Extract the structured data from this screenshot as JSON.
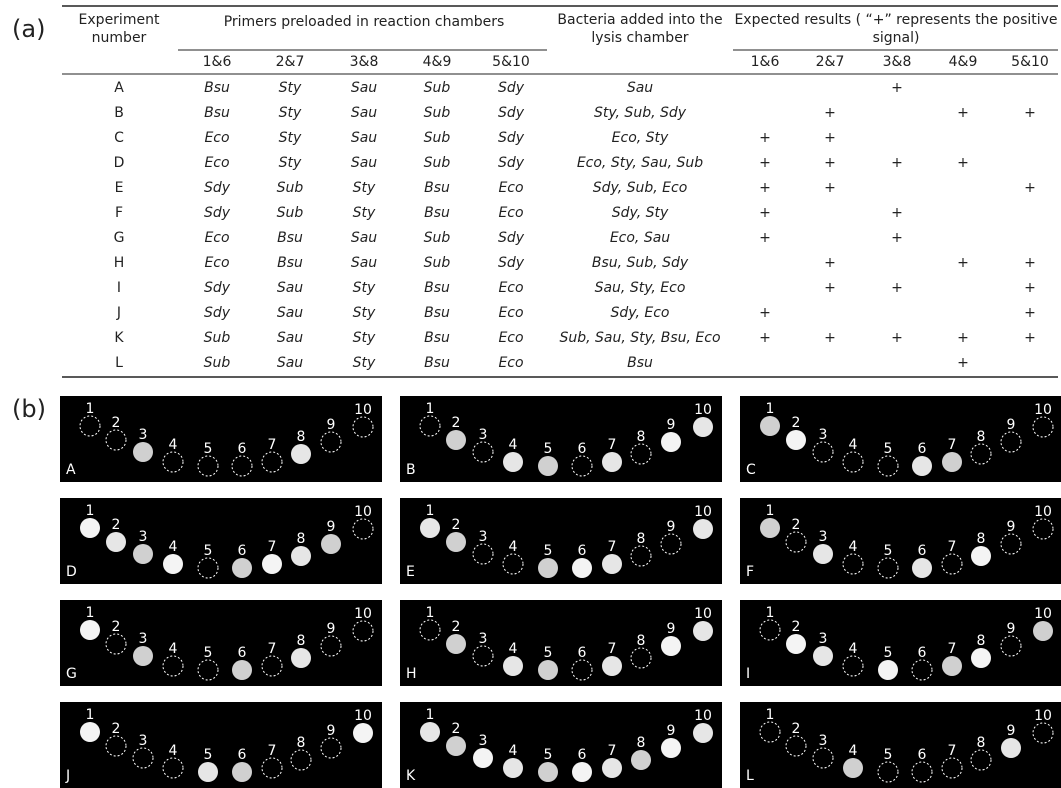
{
  "panel_a": {
    "label": "(a)",
    "header": {
      "experiment": [
        "Experiment",
        "number"
      ],
      "primers": "Primers preloaded in reaction chambers",
      "bacteria": [
        "Bacteria added into the",
        "lysis chamber"
      ],
      "expected": [
        "Expected results ( “+” represents the  positive",
        "signal)"
      ],
      "chamber_pairs": [
        "1&6",
        "2&7",
        "3&8",
        "4&9",
        "5&10"
      ]
    },
    "rows": [
      {
        "experiment": "A",
        "primers": [
          "Bsu",
          "Sty",
          "Sau",
          "Sub",
          "Sdy"
        ],
        "bacteria": "Sau",
        "results": [
          null,
          null,
          "+",
          null,
          null
        ]
      },
      {
        "experiment": "B",
        "primers": [
          "Bsu",
          "Sty",
          "Sau",
          "Sub",
          "Sdy"
        ],
        "bacteria": "Sty, Sub, Sdy",
        "results": [
          null,
          "+",
          null,
          "+",
          "+"
        ]
      },
      {
        "experiment": "C",
        "primers": [
          "Eco",
          "Sty",
          "Sau",
          "Sub",
          "Sdy"
        ],
        "bacteria": "Eco, Sty",
        "results": [
          "+",
          "+",
          null,
          null,
          null
        ]
      },
      {
        "experiment": "D",
        "primers": [
          "Eco",
          "Sty",
          "Sau",
          "Sub",
          "Sdy"
        ],
        "bacteria": "Eco, Sty, Sau, Sub",
        "results": [
          "+",
          "+",
          "+",
          "+",
          null
        ]
      },
      {
        "experiment": "E",
        "primers": [
          "Sdy",
          "Sub",
          "Sty",
          "Bsu",
          "Eco"
        ],
        "bacteria": "Sdy, Sub, Eco",
        "results": [
          "+",
          "+",
          null,
          null,
          "+"
        ]
      },
      {
        "experiment": "F",
        "primers": [
          "Sdy",
          "Sub",
          "Sty",
          "Bsu",
          "Eco"
        ],
        "bacteria": "Sdy, Sty",
        "results": [
          "+",
          null,
          "+",
          null,
          null
        ]
      },
      {
        "experiment": "G",
        "primers": [
          "Eco",
          "Bsu",
          "Sau",
          "Sub",
          "Sdy"
        ],
        "bacteria": "Eco, Sau",
        "results": [
          "+",
          null,
          "+",
          null,
          null
        ]
      },
      {
        "experiment": "H",
        "primers": [
          "Eco",
          "Bsu",
          "Sau",
          "Sub",
          "Sdy"
        ],
        "bacteria": "Bsu, Sub, Sdy",
        "results": [
          null,
          "+",
          null,
          "+",
          "+"
        ]
      },
      {
        "experiment": "I",
        "primers": [
          "Sdy",
          "Sau",
          "Sty",
          "Bsu",
          "Eco"
        ],
        "bacteria": "Sau, Sty, Eco",
        "results": [
          null,
          "+",
          "+",
          null,
          "+"
        ]
      },
      {
        "experiment": "J",
        "primers": [
          "Sdy",
          "Sau",
          "Sty",
          "Bsu",
          "Eco"
        ],
        "bacteria": "Sdy, Eco",
        "results": [
          "+",
          null,
          null,
          null,
          "+"
        ]
      },
      {
        "experiment": "K",
        "primers": [
          "Sub",
          "Sau",
          "Sty",
          "Bsu",
          "Eco"
        ],
        "bacteria": "Sub, Sau, Sty, Bsu, Eco",
        "results": [
          "+",
          "+",
          "+",
          "+",
          "+"
        ]
      },
      {
        "experiment": "L",
        "primers": [
          "Sub",
          "Sau",
          "Sty",
          "Bsu",
          "Eco"
        ],
        "bacteria": "Bsu",
        "results": [
          null,
          null,
          null,
          "+",
          null
        ]
      }
    ]
  },
  "panel_b": {
    "label": "(b)",
    "chamber_numbers": [
      "1",
      "2",
      "3",
      "4",
      "5",
      "6",
      "7",
      "8",
      "9",
      "10"
    ],
    "images": [
      "A",
      "B",
      "C",
      "D",
      "E",
      "F",
      "G",
      "H",
      "I",
      "J",
      "K",
      "L"
    ]
  }
}
